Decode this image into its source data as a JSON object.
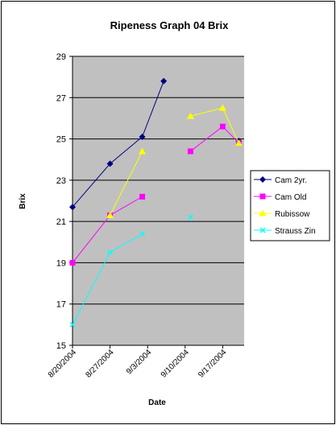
{
  "chart_data": {
    "type": "line",
    "title": "Ripeness Graph 04  Brix",
    "xlabel": "Date",
    "ylabel": "Brix",
    "ylim": [
      15,
      29
    ],
    "y_ticks": [
      15,
      17,
      19,
      21,
      23,
      25,
      27,
      29
    ],
    "x_range": [
      "8/20/2004",
      "9/21/2004"
    ],
    "x_ticks": [
      "8/20/2004",
      "8/27/2004",
      "9/3/2004",
      "9/10/2004",
      "9/17/2004"
    ],
    "grid": "horizontal major gridlines",
    "plot_background": "#c0c0c0",
    "legend_position": "right",
    "series": [
      {
        "name": "Cam 2yr.",
        "color": "#000080",
        "marker": "diamond",
        "segments": [
          [
            [
              "8/20/2004",
              21.7
            ],
            [
              "8/27/2004",
              23.8
            ],
            [
              "9/2/2004",
              25.1
            ],
            [
              "9/6/2004",
              27.8
            ]
          ],
          [
            [
              "9/20/2004",
              24.9
            ]
          ]
        ]
      },
      {
        "name": "Cam Old",
        "color": "#ff00ff",
        "marker": "square",
        "segments": [
          [
            [
              "8/20/2004",
              19.0
            ],
            [
              "8/27/2004",
              21.3
            ],
            [
              "9/2/2004",
              22.2
            ]
          ],
          [
            [
              "9/11/2004",
              24.4
            ],
            [
              "9/17/2004",
              25.6
            ],
            [
              "9/20/2004",
              24.8
            ]
          ]
        ]
      },
      {
        "name": "Rubissow",
        "color": "#ffff00",
        "marker": "triangle",
        "segments": [
          [
            [
              "8/27/2004",
              21.3
            ],
            [
              "9/2/2004",
              24.4
            ]
          ],
          [
            [
              "9/11/2004",
              26.1
            ],
            [
              "9/17/2004",
              26.5
            ],
            [
              "9/20/2004",
              24.8
            ]
          ]
        ]
      },
      {
        "name": "Strauss Zin",
        "color": "#00ffff",
        "marker": "x",
        "segments": [
          [
            [
              "8/20/2004",
              16.0
            ],
            [
              "8/27/2004",
              19.5
            ],
            [
              "9/2/2004",
              20.4
            ]
          ],
          [
            [
              "9/11/2004",
              21.2
            ]
          ]
        ]
      }
    ]
  }
}
